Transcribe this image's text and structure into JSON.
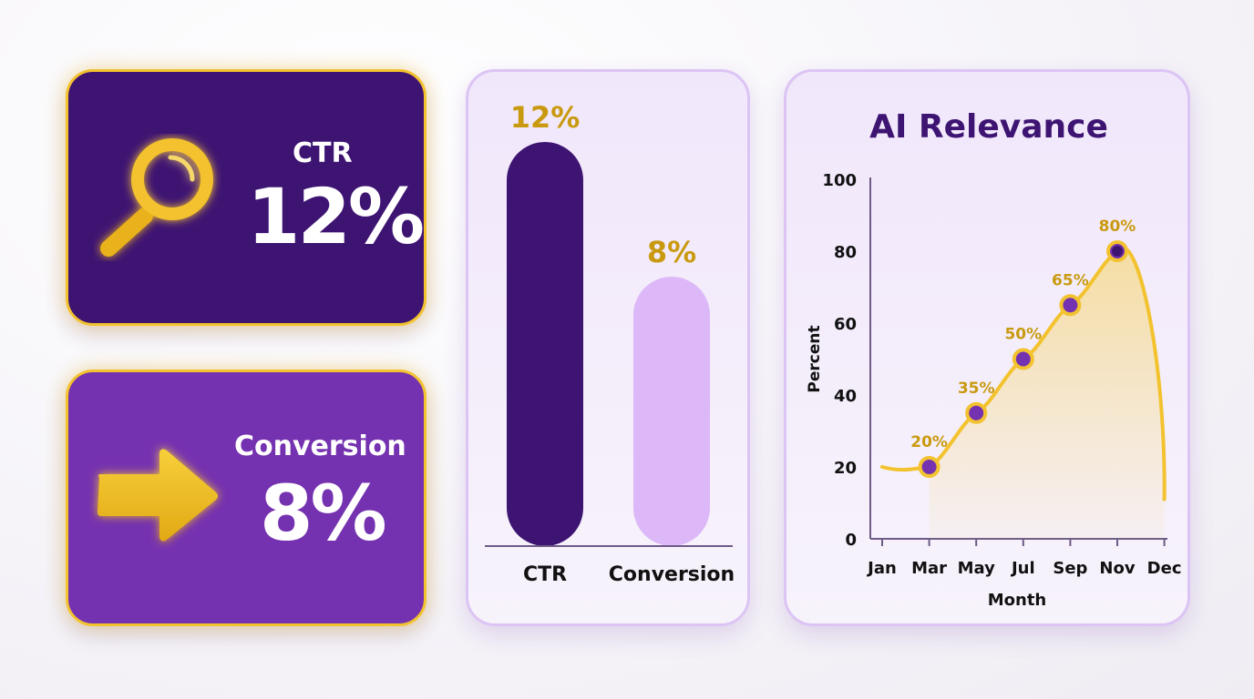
{
  "kpis": {
    "ctr": {
      "label": "CTR",
      "value": "12%",
      "icon": "magnifier-icon"
    },
    "conversion": {
      "label": "Conversion",
      "value": "8%",
      "icon": "arrow-right-icon"
    }
  },
  "colors": {
    "dark_purple": "#3e1473",
    "medium_purple": "#7532b0",
    "light_purple": "#ddb8f8",
    "gold": "#f3c22f",
    "gold_text": "#c99a10"
  },
  "chart_data": [
    {
      "type": "bar",
      "categories": [
        "CTR",
        "Conversion"
      ],
      "values": [
        12,
        8
      ],
      "value_labels": [
        "12%",
        "8%"
      ],
      "ylim": [
        0,
        13
      ],
      "title": "",
      "xlabel": "",
      "ylabel": ""
    },
    {
      "type": "line",
      "title": "AI Relevance",
      "xlabel": "Month",
      "ylabel": "Percent",
      "x_ticks": [
        "Jan",
        "Mar",
        "May",
        "Jul",
        "Sep",
        "Nov",
        "Dec"
      ],
      "y_ticks": [
        "0",
        "20",
        "40",
        "60",
        "80",
        "100"
      ],
      "ylim": [
        0,
        100
      ],
      "points": [
        {
          "x": "Mar",
          "y": 20,
          "label": "20%"
        },
        {
          "x": "May",
          "y": 35,
          "label": "35%"
        },
        {
          "x": "Jul",
          "y": 50,
          "label": "50%"
        },
        {
          "x": "Sep",
          "y": 65,
          "label": "65%"
        },
        {
          "x": "Nov",
          "y": 80,
          "label": "80%"
        }
      ],
      "curve_start": {
        "x": "Jan",
        "y": 20
      },
      "curve_end": {
        "x": "Dec",
        "y": 11
      },
      "grid": false
    }
  ]
}
